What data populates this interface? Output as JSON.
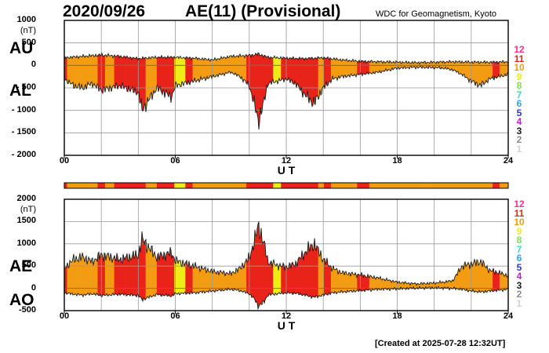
{
  "header": {
    "date": "2020/09/26",
    "title": "AE(11) (Provisional)",
    "credit": "WDC for Geomagnetism, Kyoto",
    "created": "[Created at 2025-07-28 12:32UT]"
  },
  "key": {
    "levels": [
      "12",
      "11",
      "10",
      "9",
      "8",
      "7",
      "6",
      "5",
      "4",
      "3",
      "2",
      "1"
    ],
    "colors": [
      "#ff2f8e",
      "#e8231a",
      "#f39c12",
      "#f0ec1a",
      "#7fe34a",
      "#34dcc8",
      "#2fa6e8",
      "#2b38d8",
      "#c21bd0",
      "#1a1a1a",
      "#8a8a8a",
      "#d2d2d2"
    ]
  },
  "chart_data": [
    {
      "name": "AU/AL",
      "type": "area",
      "side_labels": [
        "AU",
        "AL"
      ],
      "unit": "(nT)",
      "ylim": [
        -2000,
        1000
      ],
      "yticks": [
        1000,
        500,
        0,
        -500,
        -1000,
        -1500,
        -2000
      ],
      "ytick_labels": [
        "1000",
        "500",
        "0",
        "- 500",
        "- 1000",
        "- 1500",
        "- 2000"
      ],
      "xlim": [
        0,
        24
      ],
      "xticks": [
        0,
        6,
        12,
        18,
        24
      ],
      "xtick_labels": [
        "00",
        "06",
        "12",
        "18",
        "24"
      ],
      "xlabel": "U T",
      "grid": true,
      "series": [
        {
          "name": "AU",
          "x": [
            0,
            1,
            2,
            3,
            4,
            5,
            6,
            7,
            8,
            9,
            10,
            10.5,
            11,
            12,
            13,
            14,
            15,
            16,
            17,
            18,
            19,
            20,
            21,
            22,
            23,
            24
          ],
          "values": [
            170,
            200,
            230,
            200,
            150,
            180,
            180,
            160,
            120,
            200,
            220,
            250,
            180,
            160,
            150,
            170,
            120,
            90,
            80,
            70,
            60,
            70,
            80,
            70,
            70,
            80
          ]
        },
        {
          "name": "AL",
          "x": [
            0,
            0.5,
            1,
            1.5,
            2,
            3,
            4,
            4.2,
            5,
            5.8,
            6,
            7,
            8,
            9,
            9.5,
            10,
            10.3,
            10.5,
            10.8,
            11,
            11.5,
            12,
            12.5,
            13,
            13.5,
            14,
            14.5,
            15,
            16,
            17,
            18,
            19,
            20,
            20.5,
            21,
            21.5,
            22,
            22.5,
            23,
            23.5,
            24
          ],
          "values": [
            -300,
            -450,
            -500,
            -400,
            -550,
            -450,
            -600,
            -1000,
            -500,
            -700,
            -450,
            -350,
            -250,
            -150,
            -250,
            -450,
            -900,
            -1250,
            -800,
            -400,
            -350,
            -300,
            -400,
            -650,
            -850,
            -500,
            -300,
            -250,
            -200,
            -150,
            -60,
            -40,
            -50,
            -60,
            -100,
            -200,
            -350,
            -450,
            -300,
            -250,
            -200
          ]
        }
      ]
    },
    {
      "name": "AE/AO",
      "type": "area",
      "side_labels": [
        "AE",
        "AO"
      ],
      "unit": "(nT)",
      "ylim": [
        -500,
        2000
      ],
      "yticks": [
        2000,
        1500,
        1000,
        500,
        0,
        -500
      ],
      "ytick_labels": [
        "2000",
        "1500",
        "1000",
        "500",
        "0",
        "-500"
      ],
      "xlim": [
        0,
        24
      ],
      "xticks": [
        0,
        6,
        12,
        18,
        24
      ],
      "xtick_labels": [
        "00",
        "06",
        "12",
        "18",
        "24"
      ],
      "xlabel": "U T",
      "grid": true,
      "series": [
        {
          "name": "AE_upper",
          "x": [
            0,
            0.5,
            1,
            1.5,
            2,
            3,
            4,
            4.2,
            5,
            5.8,
            6,
            7,
            8,
            9,
            9.5,
            10,
            10.3,
            10.5,
            10.8,
            11,
            11.5,
            12,
            12.5,
            13,
            13.5,
            14,
            14.5,
            15,
            16,
            17,
            18,
            19,
            20,
            20.5,
            21,
            21.5,
            22,
            22.5,
            23,
            23.5,
            24
          ],
          "values": [
            450,
            650,
            700,
            600,
            750,
            650,
            750,
            1100,
            700,
            800,
            620,
            500,
            380,
            330,
            450,
            680,
            1100,
            1400,
            1000,
            600,
            520,
            480,
            550,
            800,
            1000,
            650,
            450,
            350,
            300,
            230,
            140,
            100,
            120,
            140,
            170,
            500,
            550,
            600,
            400,
            350,
            280
          ]
        },
        {
          "name": "AE_lower",
          "x": [
            0,
            0.5,
            1,
            1.5,
            2,
            3,
            4,
            4.2,
            5,
            5.8,
            6,
            7,
            8,
            9,
            9.5,
            10,
            10.3,
            10.5,
            10.8,
            11,
            11.5,
            12,
            12.5,
            13,
            13.5,
            14,
            14.5,
            15,
            16,
            17,
            18,
            19,
            20,
            20.5,
            21,
            21.5,
            22,
            22.5,
            23,
            23.5,
            24
          ],
          "values": [
            -100,
            -130,
            -150,
            -120,
            -160,
            -130,
            -160,
            -250,
            -140,
            -170,
            -120,
            -100,
            -60,
            -20,
            -50,
            -120,
            -250,
            -400,
            -300,
            -150,
            -120,
            -100,
            -110,
            -150,
            -200,
            -150,
            -100,
            -80,
            -50,
            -20,
            -10,
            5,
            15,
            10,
            0,
            -20,
            -60,
            -80,
            -60,
            -40,
            -20
          ]
        }
      ]
    }
  ]
}
